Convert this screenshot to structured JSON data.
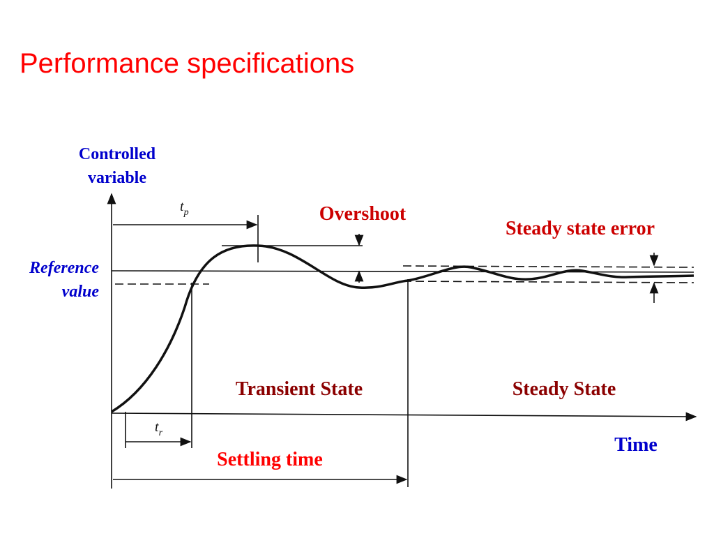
{
  "header": {
    "title": "Performance specifications"
  },
  "diagram": {
    "y_axis_label": [
      "Controlled",
      "variable"
    ],
    "reference_label": [
      "Reference",
      "value"
    ],
    "overshoot": "Overshoot",
    "steady_state_error": "Steady state error",
    "transient_state": "Transient State",
    "steady_state": "Steady State",
    "x_axis_label": "Time",
    "settling_time": "Settling time",
    "peak_time": {
      "base": "t",
      "subscript": "p"
    },
    "rise_time": {
      "base": "t",
      "subscript": "r"
    }
  }
}
